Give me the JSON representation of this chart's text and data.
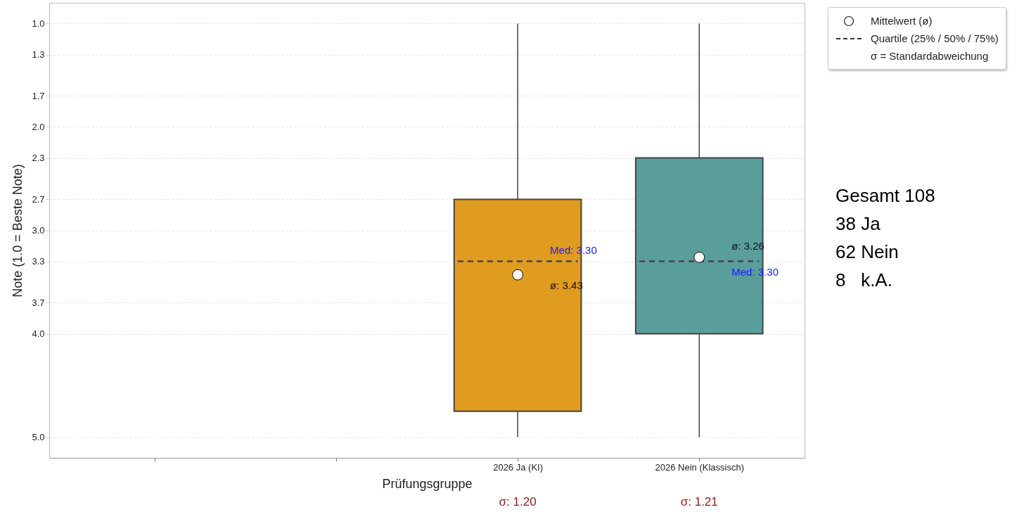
{
  "chart_data": {
    "type": "box",
    "categories": [
      null,
      null,
      "2026 Ja (KI)",
      "2026 Nein (Klassisch)"
    ],
    "boxes": [
      null,
      null,
      {
        "low": 1.0,
        "q1": 2.7,
        "median": 3.3,
        "q3": 4.75,
        "high": 5.0,
        "mean": 3.43
      },
      {
        "low": 1.0,
        "q1": 2.3,
        "median": 3.3,
        "q3": 4.0,
        "high": 5.0,
        "mean": 3.26
      }
    ],
    "colors": [
      null,
      null,
      "#e09b21",
      "#5a9e9c"
    ],
    "xlabel": "Prüfungsgruppe",
    "ylabel": "Note (1.0 = Beste Note)",
    "ylim": [
      5.2,
      0.8
    ],
    "yticks": [
      {
        "value": 1,
        "label": "1.0"
      },
      1.3,
      1.7,
      {
        "value": 2,
        "label": "2.0"
      },
      2.3,
      2.7,
      {
        "value": 3,
        "label": "3.0"
      },
      3.3,
      3.7,
      {
        "value": 4,
        "label": "4.0"
      },
      {
        "value": 5,
        "label": "5.0"
      }
    ],
    "grid": "y",
    "marker": "circle",
    "line_style": "dashed",
    "annotations": [
      "Med: 3.30",
      "ø: 3.43",
      "ø: 3.26",
      "Med: 3.30",
      "σ: 1.20",
      "σ: 1.21",
      "Mittelwert (ø)",
      "Quartile (25% / 50% / 75%)",
      "σ = Standardabweichung",
      "Gesamt 108",
      "38 Ja",
      "62 Nein",
      "8   k.A."
    ]
  }
}
